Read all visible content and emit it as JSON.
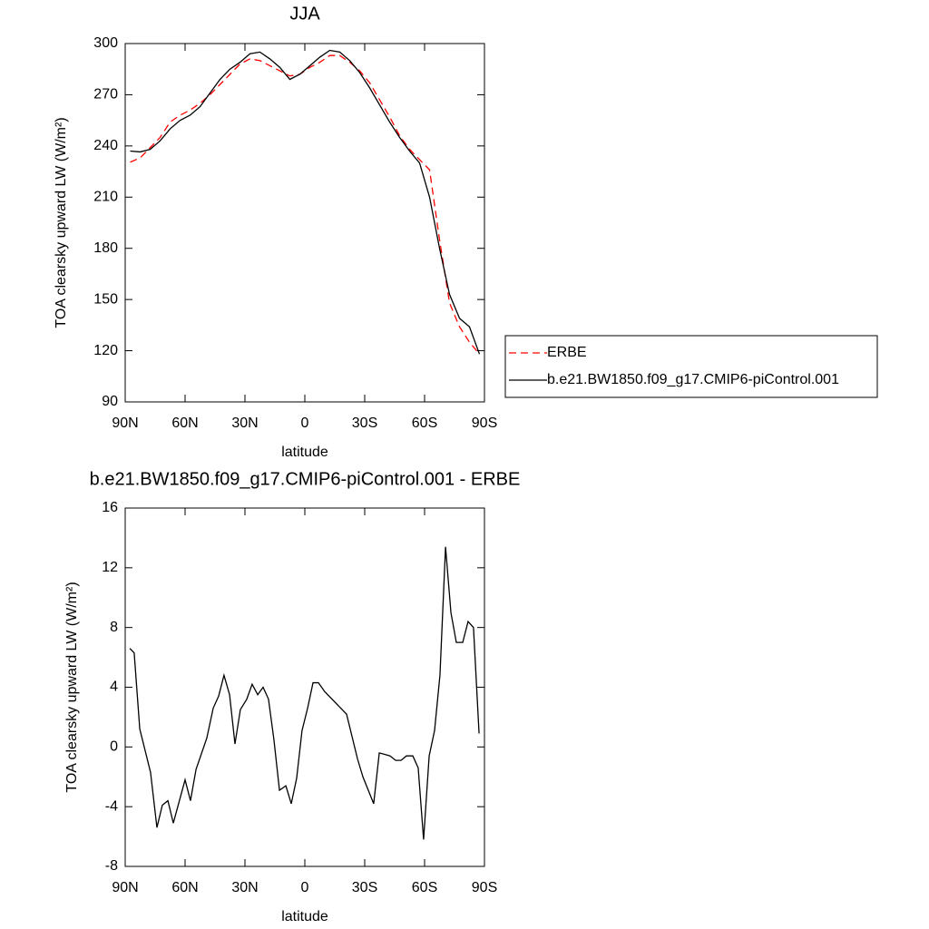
{
  "chart_data": [
    {
      "type": "line",
      "title": "JJA",
      "xlabel": "latitude",
      "ylabel": "TOA clearsky upward LW (W/m²)",
      "xlim": [
        90,
        -90
      ],
      "ylim": [
        90,
        300
      ],
      "xticks": [
        {
          "value": 90,
          "label": "90N"
        },
        {
          "value": 60,
          "label": "60N"
        },
        {
          "value": 30,
          "label": "30N"
        },
        0,
        {
          "value": -30,
          "label": "30S"
        },
        {
          "value": -60,
          "label": "60S"
        },
        {
          "value": -90,
          "label": "90S"
        }
      ],
      "yticks": [
        90,
        120,
        150,
        180,
        210,
        240,
        270,
        300
      ],
      "legend": "right",
      "x": [
        87.5,
        82.5,
        77.5,
        72.5,
        67.5,
        62.5,
        57.5,
        52.5,
        47.5,
        42.5,
        37.5,
        32.5,
        27.5,
        22.5,
        17.5,
        12.5,
        7.5,
        2.5,
        -2.5,
        -7.5,
        -12.5,
        -17.5,
        -22.5,
        -27.5,
        -32.5,
        -37.5,
        -42.5,
        -47.5,
        -52.5,
        -57.5,
        -62.5,
        -67.5,
        -72.5,
        -77.5,
        -82.5,
        -87.5
      ],
      "series": [
        {
          "name": "ERBE",
          "color": "#ff0000",
          "linestyle": "dashed",
          "values": [
            230.5,
            233,
            239,
            245,
            254,
            258,
            261,
            265,
            270,
            276,
            282,
            288,
            291,
            290,
            287,
            284,
            281,
            282,
            286,
            289,
            293,
            293,
            289,
            284,
            277,
            267,
            257,
            246,
            238,
            232,
            226,
            185,
            148,
            134,
            125,
            118
          ]
        },
        {
          "name": "b.e21.BW1850.f09_g17.CMIP6-piControl.001",
          "color": "#000000",
          "linestyle": "solid",
          "values": [
            237,
            236.5,
            238,
            243,
            250,
            255,
            258,
            263,
            271,
            279,
            285,
            289,
            294,
            295,
            291,
            286,
            279,
            282,
            287,
            292,
            296,
            295,
            290,
            283,
            274,
            264,
            254,
            245,
            237,
            230,
            210,
            180,
            153,
            139,
            134,
            118
          ]
        }
      ]
    },
    {
      "type": "line",
      "title": "b.e21.BW1850.f09_g17.CMIP6-piControl.001 - ERBE",
      "xlabel": "latitude",
      "ylabel": "TOA clearsky upward LW (W/m²)",
      "xlim": [
        90,
        -90
      ],
      "ylim": [
        -8,
        16
      ],
      "xticks": [
        {
          "value": 90,
          "label": "90N"
        },
        {
          "value": 60,
          "label": "60N"
        },
        {
          "value": 30,
          "label": "30N"
        },
        0,
        {
          "value": -30,
          "label": "30S"
        },
        {
          "value": -60,
          "label": "60S"
        },
        {
          "value": -90,
          "label": "90S"
        }
      ],
      "yticks": [
        -8,
        -4,
        0,
        4,
        8,
        12,
        16
      ],
      "color": "#000000",
      "x": [
        87.7,
        85.5,
        82.7,
        77.3,
        74.1,
        71.4,
        68.6,
        65.9,
        60,
        57.3,
        54.5,
        49.1,
        45.9,
        43.2,
        40.5,
        37.7,
        35,
        32.3,
        29.1,
        26.4,
        23.6,
        20.9,
        18.2,
        15.5,
        12.7,
        9.5,
        6.8,
        4.1,
        1.4,
        -1.4,
        -4.1,
        -6.8,
        -10,
        -20.9,
        -26.4,
        -29.1,
        -34.5,
        -37.3,
        -40,
        -42.7,
        -45.5,
        -48.2,
        -50.9,
        -54.1,
        -56.8,
        -59.5,
        -62.3,
        -65,
        -67.7,
        -70.5,
        -73.2,
        -75.9,
        -79.1,
        -81.8,
        -84.5,
        -87.3
      ],
      "values": [
        6.6,
        6.3,
        1.2,
        -1.7,
        -5.4,
        -3.9,
        -3.6,
        -5.1,
        -2.2,
        -3.6,
        -1.5,
        0.6,
        2.6,
        3.4,
        4.8,
        3.5,
        0.2,
        2.5,
        3.2,
        4.2,
        3.5,
        4.0,
        3.2,
        0.5,
        -2.9,
        -2.6,
        -3.8,
        -2.1,
        1.1,
        2.6,
        4.3,
        4.3,
        3.7,
        2.2,
        -0.8,
        -2.0,
        -3.8,
        -0.4,
        -0.5,
        -0.6,
        -0.9,
        -0.9,
        -0.6,
        -0.6,
        -1.4,
        -6.2,
        -0.6,
        1.1,
        4.8,
        13.4,
        9.0,
        7.0,
        7.0,
        8.4,
        8.0,
        0.9
      ]
    }
  ]
}
